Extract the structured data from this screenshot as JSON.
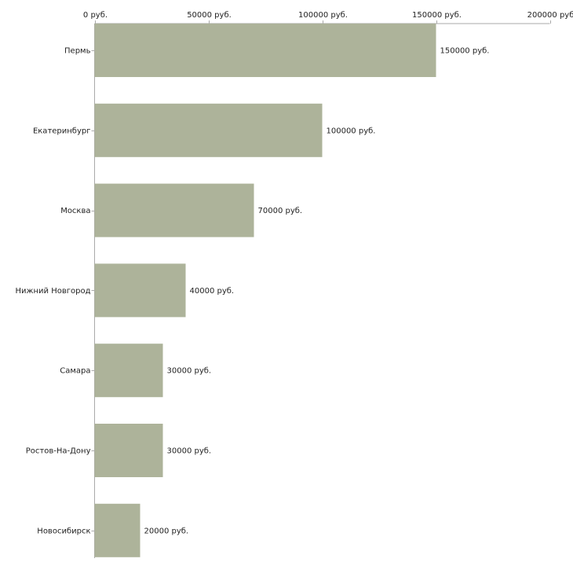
{
  "chart_data": {
    "type": "bar",
    "orientation": "horizontal",
    "title": "",
    "xlabel": "",
    "ylabel": "",
    "categories": [
      "Пермь",
      "Екатеринбург",
      "Москва",
      "Нижний Новгород",
      "Самара",
      "Ростов-На-Дону",
      "Новосибирск"
    ],
    "values": [
      150000,
      100000,
      70000,
      40000,
      30000,
      30000,
      20000
    ],
    "value_labels": [
      "150000 руб.",
      "100000 руб.",
      "70000 руб.",
      "40000 руб.",
      "30000 руб.",
      "30000 руб.",
      "20000 руб."
    ],
    "xlim": [
      0,
      200000
    ],
    "ticks": [
      0,
      50000,
      100000,
      150000,
      200000
    ],
    "tick_labels": [
      "0 руб.",
      "50000 руб.",
      "100000 руб.",
      "150000 руб.",
      "200000 руб"
    ],
    "axis_position": "top",
    "grid": false,
    "colors": {
      "bar": "#adb39a",
      "axis": "#aaaaaa",
      "text": "#222222"
    }
  }
}
